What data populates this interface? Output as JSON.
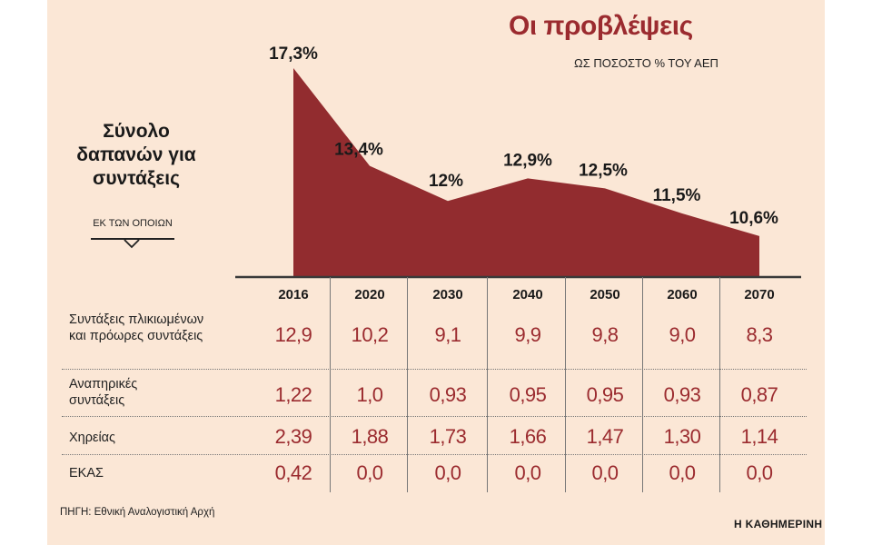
{
  "title": "Οι προβλέψεις",
  "subtitle": "ΩΣ ΠΟΣΟΣΤΟ % ΤΟΥ ΑΕΠ",
  "left_label": "Σύνολο δαπανών για συντάξεις",
  "left_sub": "ΕΚ ΤΩΝ ΟΠΟΙΩΝ",
  "source": "ΠΗΓΗ: Εθνική Αναλογιστική Αρχή",
  "brand": "Η ΚΑΘΗΜΕΡΙΝΗ",
  "colors": {
    "fill": "#922c2f",
    "accent": "#9b2b2f",
    "background": "#fbe7d6"
  },
  "chart_data": {
    "type": "area",
    "title": "Οι προβλέψεις",
    "subtitle": "ΩΣ ΠΟΣΟΣΤΟ % ΤΟΥ ΑΕΠ",
    "ylabel": "Σύνολο δαπανών για συντάξεις",
    "categories": [
      "2016",
      "2020",
      "2030",
      "2040",
      "2050",
      "2060",
      "2070"
    ],
    "values": [
      17.3,
      13.4,
      12.0,
      12.9,
      12.5,
      11.5,
      10.6
    ],
    "data_labels": [
      "17,3%",
      "13,4%",
      "12%",
      "12,9%",
      "12,5%",
      "11,5%",
      "10,6%"
    ],
    "ylim": [
      0,
      18
    ],
    "grid": false
  },
  "table": {
    "rows": [
      {
        "label": "Συντάξεις πλικιωμένων και πρόωρες συντάξεις",
        "values": [
          "12,9",
          "10,2",
          "9,1",
          "9,9",
          "9,8",
          "9,0",
          "8,3"
        ]
      },
      {
        "label": "Αναπηρικές συντάξεις",
        "values": [
          "1,22",
          "1,0",
          "0,93",
          "0,95",
          "0,95",
          "0,93",
          "0,87"
        ]
      },
      {
        "label": "Χηρείας",
        "values": [
          "2,39",
          "1,88",
          "1,73",
          "1,66",
          "1,47",
          "1,30",
          "1,14"
        ]
      },
      {
        "label": "ΕΚΑΣ",
        "values": [
          "0,42",
          "0,0",
          "0,0",
          "0,0",
          "0,0",
          "0,0",
          "0,0"
        ]
      }
    ]
  }
}
